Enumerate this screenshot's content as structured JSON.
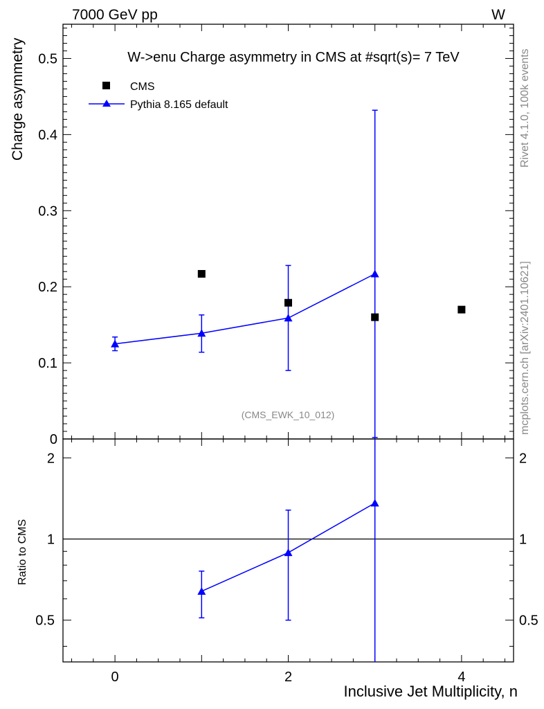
{
  "header": {
    "energy_label": "7000 GeV pp",
    "process_label": "W"
  },
  "side_labels": {
    "rivet": "Rivet 4.1.0,  100k events",
    "mcplots": "mcplots.cern.ch [arXiv:2401.10621]"
  },
  "colors": {
    "data": "#000000",
    "mc": "#0000ff",
    "watermark": "#888888"
  },
  "chart_data": [
    {
      "type": "scatter",
      "title": "W->enu Charge asymmetry in CMS at #sqrt(s)= 7 TeV",
      "ylabel": "Charge asymmetry",
      "watermark": "(CMS_EWK_10_012)",
      "xlim": [
        -0.6,
        4.6
      ],
      "ylim": [
        0,
        0.545
      ],
      "x_ticks": [
        0,
        2,
        4
      ],
      "y_ticks": [
        0.1,
        0.2,
        0.3,
        0.4,
        0.5
      ],
      "y_tick_labels": [
        "0.1",
        "0.2",
        "0.3",
        "0.4",
        "0.5"
      ],
      "y_zero_label": "0",
      "legend_position": "top-left",
      "series": [
        {
          "name": "CMS",
          "marker": "square",
          "x": [
            1,
            2,
            3,
            4
          ],
          "y": [
            0.217,
            0.179,
            0.16,
            0.17
          ]
        },
        {
          "name": "Pythia 8.165 default",
          "marker": "triangle",
          "x": [
            0,
            1,
            2,
            3
          ],
          "y": [
            0.125,
            0.139,
            0.159,
            0.217
          ],
          "err_low": [
            0.009,
            0.025,
            0.069,
            0.215
          ],
          "err_high": [
            0.009,
            0.024,
            0.069,
            0.215
          ]
        }
      ]
    },
    {
      "type": "scatter",
      "ylabel": "Ratio to CMS",
      "xlabel": "Inclusive Jet Multiplicity, n",
      "xlim": [
        -0.6,
        4.6
      ],
      "ylim": [
        0.35,
        2.35
      ],
      "x_ticks": [
        0,
        2,
        4
      ],
      "x_tick_labels": [
        "0",
        "2",
        "4"
      ],
      "y_ticks": [
        0.5,
        1,
        2
      ],
      "y_tick_labels": [
        "0.5",
        "1",
        "2"
      ],
      "reference_line": 1,
      "series": [
        {
          "name": "Pythia 8.165 default",
          "marker": "triangle",
          "x": [
            1,
            2,
            3
          ],
          "y": [
            0.64,
            0.89,
            1.36
          ],
          "err_low": [
            0.13,
            0.39,
            1.36
          ],
          "err_high": [
            0.12,
            0.39,
            1.4
          ]
        }
      ]
    }
  ]
}
